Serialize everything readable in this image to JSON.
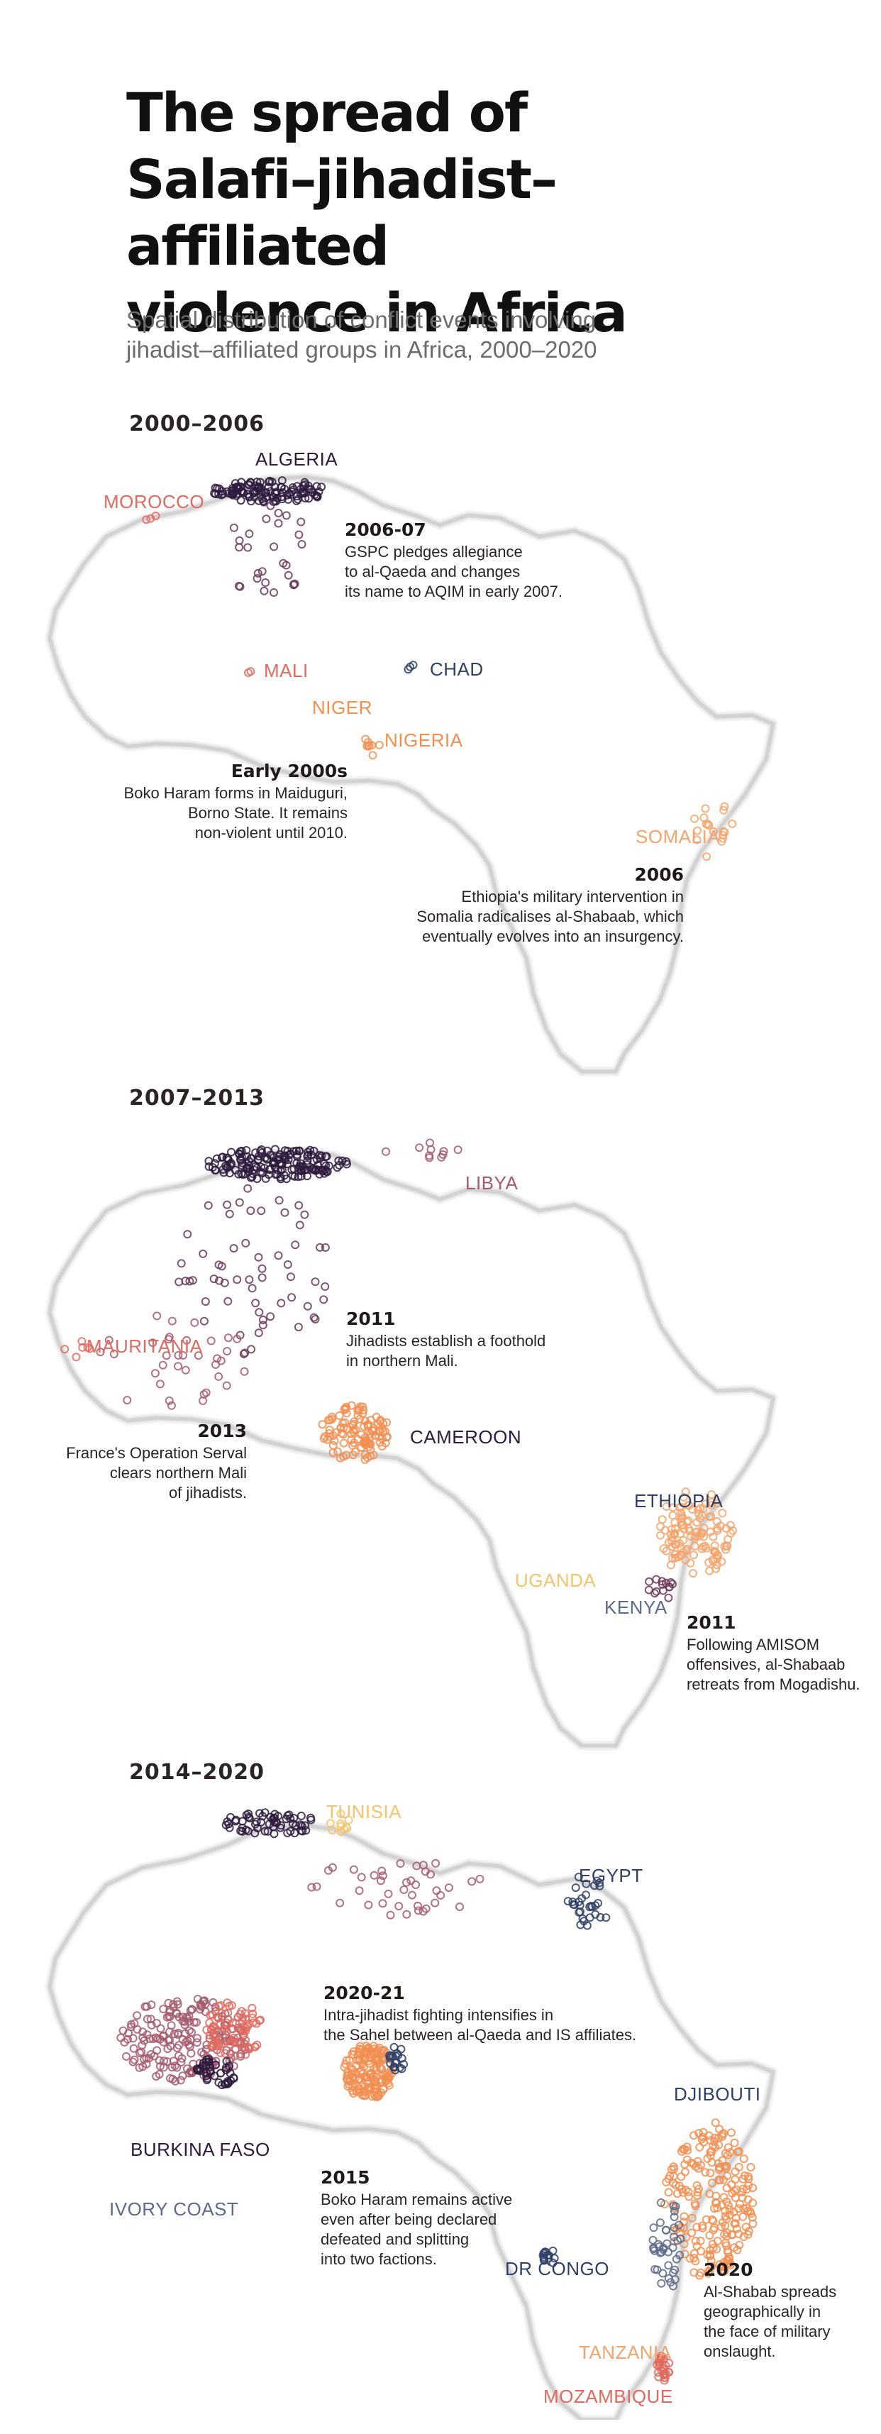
{
  "title": {
    "lines": [
      "The spread of",
      "Salafi–jihadist–affiliated",
      "violence in Africa"
    ]
  },
  "subtitle": {
    "lines": [
      "Spatial distribution of conflict events involving",
      "jihadist–affiliated groups in Africa, 2000–2020"
    ]
  },
  "colors": {
    "dark_purple": "#2e1a3d",
    "plum": "#6b3a5a",
    "mauve": "#a45a6d",
    "coral": "#e06a5f",
    "orange": "#f28e50",
    "light_orange": "#f5a36b",
    "yellow": "#f5c46a",
    "navy": "#2f3f66",
    "slate": "#5d6b8a"
  },
  "panels": [
    {
      "period": "2000–2006",
      "labels": {
        "algeria": "ALGERIA",
        "morocco": "MOROCCO",
        "mali": "MALI",
        "chad": "CHAD",
        "niger": "NIGER",
        "nigeria": "NIGERIA",
        "somalia": "SOMALIA"
      },
      "notes": [
        {
          "year": "2006-07",
          "lines": [
            "GSPC pledges allegiance",
            "to al-Qaeda and changes",
            "its name to AQIM in early 2007."
          ]
        },
        {
          "year": "Early 2000s",
          "lines": [
            "Boko Haram forms in Maiduguri,",
            "Borno State. It remains",
            "non-violent until 2010."
          ]
        },
        {
          "year": "2006",
          "lines": [
            "Ethiopia's military intervention in",
            "Somalia radicalises al-Shabaab, which",
            "eventually evolves into an insurgency."
          ]
        }
      ]
    },
    {
      "period": "2007–2013",
      "labels": {
        "libya": "LIBYA",
        "mauritania": "MAURITANIA",
        "cameroon": "CAMEROON",
        "ethiopia": "ETHIOPIA",
        "uganda": "UGANDA",
        "kenya": "KENYA"
      },
      "notes": [
        {
          "year": "2011",
          "lines": [
            "Jihadists establish a foothold",
            "in northern Mali."
          ]
        },
        {
          "year": "2013",
          "lines": [
            "France's Operation Serval",
            "clears northern Mali",
            "of jihadists."
          ]
        },
        {
          "year": "2011",
          "lines": [
            "Following AMISOM",
            "offensives, al-Shabaab",
            "retreats from Mogadishu."
          ]
        }
      ]
    },
    {
      "period": "2014–2020",
      "labels": {
        "tunisia": "TUNISIA",
        "egypt": "EGYPT",
        "burkina_faso": "BURKINA FASO",
        "ivory_coast": "IVORY COAST",
        "djibouti": "DJIBOUTI",
        "dr_congo": "DR CONGO",
        "tanzania": "TANZANIA",
        "mozambique": "MOZAMBIQUE"
      },
      "notes": [
        {
          "year": "2020-21",
          "lines": [
            "Intra-jihadist fighting intensifies in",
            "the Sahel between al-Qaeda and IS affiliates."
          ]
        },
        {
          "year": "2015",
          "lines": [
            "Boko Haram remains active",
            "even after being declared",
            "defeated and splitting",
            "into two factions."
          ]
        },
        {
          "year": "2020",
          "lines": [
            "Al-Shabab spreads",
            "geographically in",
            "the face of military",
            "onslaught."
          ]
        }
      ]
    }
  ]
}
